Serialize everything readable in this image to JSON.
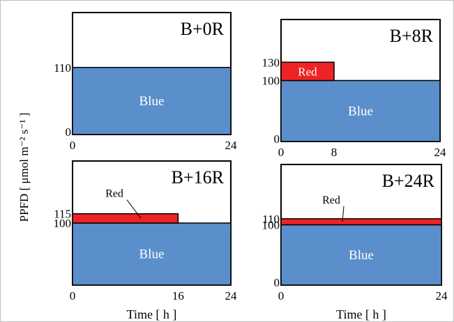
{
  "figure": {
    "ylabel": "PPFD [ μmol m⁻² s⁻¹ ]",
    "colors": {
      "blue": "#5b8fcb",
      "red": "#ee2424",
      "border": "#000000",
      "frame": "#bcbcbc"
    }
  },
  "chart_data": [
    {
      "type": "bar",
      "title": "B+0R",
      "xlabel": "",
      "x_ticks": [
        "0",
        "24"
      ],
      "y_ticks": [
        "0",
        "110"
      ],
      "xlim": [
        0,
        24
      ],
      "ylim": [
        0,
        200
      ],
      "series": [
        {
          "name": "Blue",
          "x_start": 0,
          "x_end": 24,
          "y_bottom": 0,
          "y_top": 110,
          "color": "#5b8fcb"
        }
      ],
      "annotations": []
    },
    {
      "type": "bar",
      "title": "B+8R",
      "xlabel": "",
      "x_ticks": [
        "0",
        "8",
        "24"
      ],
      "y_ticks": [
        "0",
        "100",
        "130"
      ],
      "xlim": [
        0,
        24
      ],
      "ylim": [
        0,
        200
      ],
      "series": [
        {
          "name": "Blue",
          "x_start": 0,
          "x_end": 24,
          "y_bottom": 0,
          "y_top": 100,
          "color": "#5b8fcb"
        },
        {
          "name": "Red",
          "x_start": 0,
          "x_end": 8,
          "y_bottom": 100,
          "y_top": 130,
          "color": "#ee2424"
        }
      ],
      "annotations": []
    },
    {
      "type": "bar",
      "title": "B+16R",
      "xlabel": "Time [ h ]",
      "x_ticks": [
        "0",
        "16",
        "24"
      ],
      "y_ticks": [
        "100",
        "115"
      ],
      "xlim": [
        0,
        24
      ],
      "ylim": [
        0,
        200
      ],
      "series": [
        {
          "name": "Blue",
          "x_start": 0,
          "x_end": 24,
          "y_bottom": 0,
          "y_top": 100,
          "color": "#5b8fcb"
        },
        {
          "name": "Red",
          "x_start": 0,
          "x_end": 16,
          "y_bottom": 100,
          "y_top": 115,
          "color": "#ee2424"
        }
      ],
      "annotations": [
        {
          "text": "Red",
          "target": "Red"
        }
      ]
    },
    {
      "type": "bar",
      "title": "B+24R",
      "xlabel": "Time [ h ]",
      "x_ticks": [
        "0",
        "24"
      ],
      "y_ticks": [
        "0",
        "100",
        "110"
      ],
      "xlim": [
        0,
        24
      ],
      "ylim": [
        0,
        200
      ],
      "series": [
        {
          "name": "Blue",
          "x_start": 0,
          "x_end": 24,
          "y_bottom": 0,
          "y_top": 100,
          "color": "#5b8fcb"
        },
        {
          "name": "Red",
          "x_start": 0,
          "x_end": 24,
          "y_bottom": 100,
          "y_top": 110,
          "color": "#ee2424"
        }
      ],
      "annotations": [
        {
          "text": "Red",
          "target": "Red"
        }
      ]
    }
  ]
}
